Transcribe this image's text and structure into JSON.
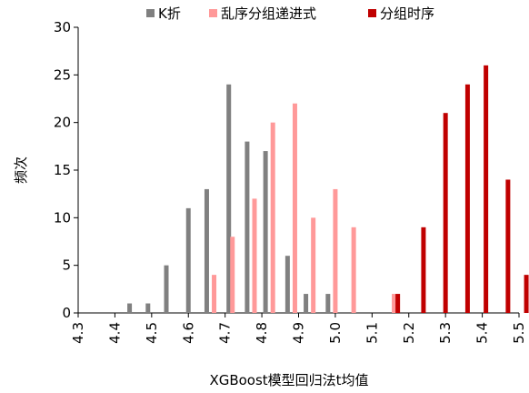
{
  "chart_data": {
    "type": "bar",
    "xlabel": "XGBoost模型回归法t均值",
    "ylabel": "频次",
    "ylim": [
      0,
      30
    ],
    "yticks": [
      0,
      5,
      10,
      15,
      20,
      25,
      30
    ],
    "xlim": [
      4.3,
      5.5
    ],
    "xticks": [
      "4.3",
      "4.4",
      "4.5",
      "4.6",
      "4.7",
      "4.8",
      "4.9",
      "5.0",
      "5.1",
      "5.2",
      "5.3",
      "5.4",
      "5.5"
    ],
    "grid": false,
    "legend_position": "top",
    "series": [
      {
        "name": "K折",
        "color": "#808080",
        "points": [
          {
            "x": 4.44,
            "y": 1
          },
          {
            "x": 4.49,
            "y": 1
          },
          {
            "x": 4.54,
            "y": 5
          },
          {
            "x": 4.6,
            "y": 11
          },
          {
            "x": 4.65,
            "y": 13
          },
          {
            "x": 4.71,
            "y": 24
          },
          {
            "x": 4.76,
            "y": 18
          },
          {
            "x": 4.81,
            "y": 17
          },
          {
            "x": 4.87,
            "y": 6
          },
          {
            "x": 4.92,
            "y": 2
          },
          {
            "x": 4.98,
            "y": 2
          }
        ]
      },
      {
        "name": "乱序分组递进式",
        "color": "#ff9999",
        "points": [
          {
            "x": 4.67,
            "y": 4
          },
          {
            "x": 4.72,
            "y": 8
          },
          {
            "x": 4.78,
            "y": 12
          },
          {
            "x": 4.83,
            "y": 20
          },
          {
            "x": 4.89,
            "y": 22
          },
          {
            "x": 4.94,
            "y": 10
          },
          {
            "x": 5.0,
            "y": 13
          },
          {
            "x": 5.05,
            "y": 9
          },
          {
            "x": 5.16,
            "y": 2
          }
        ]
      },
      {
        "name": "分组时序",
        "color": "#c00000",
        "points": [
          {
            "x": 5.17,
            "y": 2
          },
          {
            "x": 5.24,
            "y": 9
          },
          {
            "x": 5.3,
            "y": 21
          },
          {
            "x": 5.36,
            "y": 24
          },
          {
            "x": 5.41,
            "y": 26
          },
          {
            "x": 5.47,
            "y": 14
          },
          {
            "x": 5.52,
            "y": 4
          }
        ]
      }
    ]
  }
}
